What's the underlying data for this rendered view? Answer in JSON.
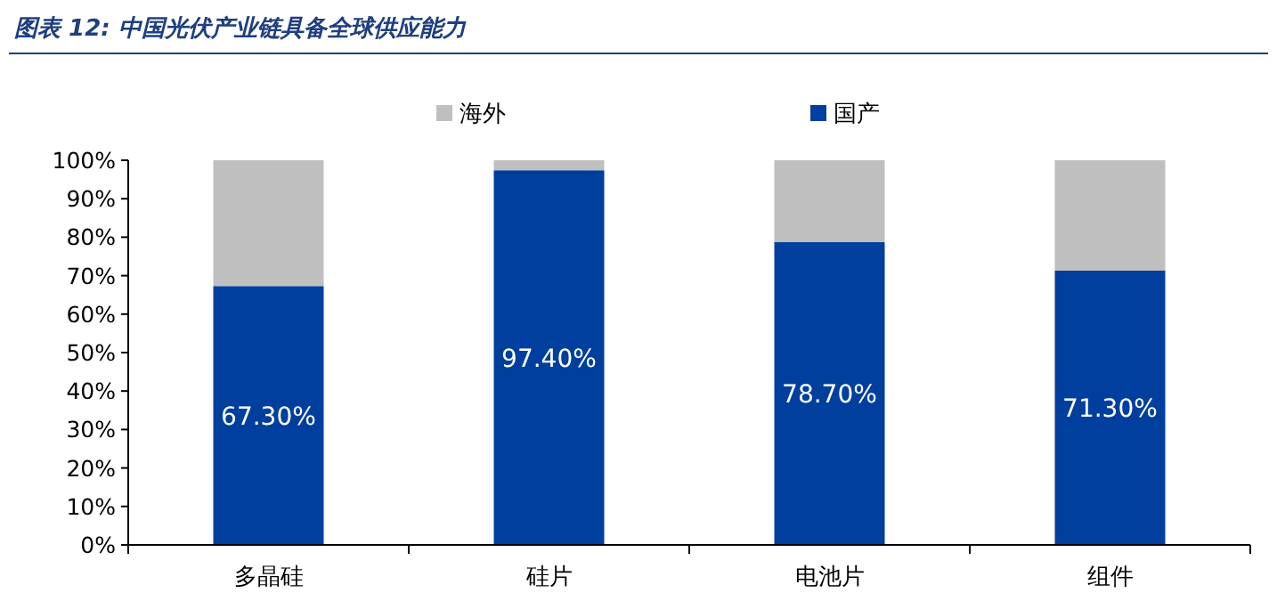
{
  "chart_data": {
    "type": "bar",
    "stacked": true,
    "title": "图表 12:  中国光伏产业链具备全球供应能力",
    "categories": [
      "多晶硅",
      "硅片",
      "电池片",
      "组件"
    ],
    "series": [
      {
        "name": "国产",
        "color": "#003f9e",
        "values": [
          67.3,
          97.4,
          78.7,
          71.3
        ],
        "value_labels": [
          "67.30%",
          "97.40%",
          "78.70%",
          "71.30%"
        ]
      },
      {
        "name": "海外",
        "color": "#bfbfbf",
        "values": [
          32.7,
          2.6,
          21.3,
          28.7
        ]
      }
    ],
    "ylim": [
      0,
      100
    ],
    "yticks": [
      {
        "value": 0,
        "label": "0%"
      },
      {
        "value": 10,
        "label": "10%"
      },
      {
        "value": 20,
        "label": "20%"
      },
      {
        "value": 30,
        "label": "30%"
      },
      {
        "value": 40,
        "label": "40%"
      },
      {
        "value": 50,
        "label": "50%"
      },
      {
        "value": 60,
        "label": "60%"
      },
      {
        "value": 70,
        "label": "70%"
      },
      {
        "value": 80,
        "label": "80%"
      },
      {
        "value": 90,
        "label": "90%"
      },
      {
        "value": 100,
        "label": "100%"
      }
    ],
    "legend": "top",
    "grid": false
  }
}
